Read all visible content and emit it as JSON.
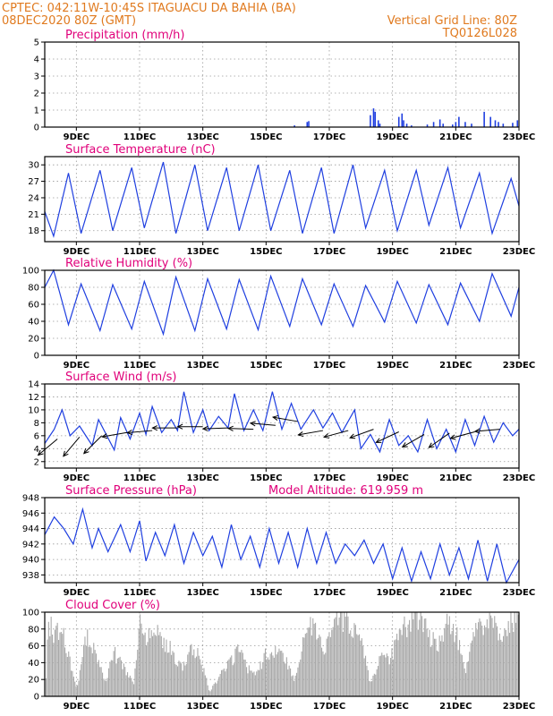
{
  "header": {
    "line1_left": "CPTEC:   042:11W-10:45S   ITAGUACU DA BAHIA (BA)",
    "line2_left": "08DEC2020 80Z (GMT)",
    "line1_right": "",
    "line2_right": "Vertical Grid Line: 80Z",
    "line3_right": "TQ0126L028"
  },
  "x_ticks": [
    "9DEC",
    "11DEC",
    "13DEC",
    "15DEC",
    "17DEC",
    "19DEC",
    "21DEC",
    "23DEC"
  ],
  "colors": {
    "series": "#1f3fe0",
    "cloud": "#a9a9a9",
    "title": "#e0007a",
    "header": "#e07a1f"
  },
  "chart_data": [
    {
      "type": "bar",
      "title": "Precipitation (mm/h)",
      "ylim": [
        0,
        5
      ],
      "yticks": [
        0,
        1,
        2,
        3,
        4,
        5
      ],
      "x": [
        15.9,
        16.3,
        16.35,
        18.3,
        18.4,
        18.45,
        18.55,
        18.6,
        19.2,
        19.3,
        19.35,
        19.45,
        19.6,
        20.1,
        20.3,
        20.5,
        20.6,
        20.9,
        21.0,
        21.1,
        21.3,
        21.5,
        21.9,
        22.1,
        22.25,
        22.35,
        22.5,
        22.8,
        22.95
      ],
      "values": [
        0.1,
        0.3,
        0.35,
        0.7,
        1.1,
        0.9,
        0.4,
        0.2,
        0.6,
        0.8,
        0.4,
        0.2,
        0.1,
        0.15,
        0.3,
        0.45,
        0.2,
        0.15,
        0.3,
        0.6,
        0.3,
        0.2,
        0.9,
        0.6,
        0.4,
        0.3,
        0.2,
        0.25,
        0.4
      ]
    },
    {
      "type": "line",
      "title": "Surface Temperature (nC)",
      "ylim": [
        16,
        31.5
      ],
      "yticks": [
        18,
        21,
        24,
        27,
        30
      ],
      "x": [
        8.0,
        8.28,
        8.75,
        9.15,
        9.75,
        10.15,
        10.75,
        11.15,
        11.75,
        12.15,
        12.75,
        13.15,
        13.75,
        14.15,
        14.75,
        15.15,
        15.75,
        16.15,
        16.75,
        17.15,
        17.75,
        18.15,
        18.75,
        19.15,
        19.75,
        20.15,
        20.75,
        21.15,
        21.75,
        22.15,
        22.75,
        23.0
      ],
      "values": [
        21.5,
        17.0,
        28.5,
        17.5,
        29.0,
        18.0,
        29.5,
        18.5,
        30.5,
        17.5,
        30.0,
        18.0,
        29.5,
        18.0,
        30.0,
        18.0,
        29.0,
        17.5,
        29.5,
        17.5,
        30.0,
        18.5,
        29.0,
        18.0,
        29.0,
        19.0,
        29.5,
        18.5,
        28.5,
        17.5,
        27.5,
        22.5
      ]
    },
    {
      "type": "line",
      "title": "Relative Humidity (%)",
      "ylim": [
        0,
        100
      ],
      "yticks": [
        0,
        20,
        40,
        60,
        80,
        100
      ],
      "x": [
        8.0,
        8.28,
        8.75,
        9.15,
        9.75,
        10.15,
        10.75,
        11.15,
        11.75,
        12.15,
        12.75,
        13.15,
        13.75,
        14.15,
        14.75,
        15.15,
        15.75,
        16.15,
        16.75,
        17.15,
        17.75,
        18.15,
        18.75,
        19.15,
        19.75,
        20.15,
        20.75,
        21.15,
        21.75,
        22.15,
        22.75,
        23.0
      ],
      "values": [
        80,
        100,
        36,
        84,
        29,
        83,
        31,
        87,
        25,
        92,
        29,
        90,
        31,
        89,
        30,
        93,
        34,
        90,
        36,
        84,
        34,
        82,
        39,
        87,
        38,
        83,
        36,
        85,
        40,
        96,
        46,
        80
      ]
    },
    {
      "type": "line",
      "title": "Surface Wind (m/s)",
      "ylim": [
        1,
        14
      ],
      "yticks": [
        2,
        4,
        6,
        8,
        10,
        12,
        14
      ],
      "x": [
        8.0,
        8.3,
        8.55,
        8.8,
        9.1,
        9.5,
        9.7,
        10.2,
        10.4,
        10.7,
        11.0,
        11.2,
        11.4,
        11.7,
        12.0,
        12.2,
        12.4,
        12.7,
        13.0,
        13.2,
        13.5,
        13.8,
        14.0,
        14.3,
        14.6,
        14.9,
        15.2,
        15.5,
        15.8,
        16.1,
        16.5,
        16.8,
        17.1,
        17.4,
        17.8,
        18.0,
        18.3,
        18.6,
        18.9,
        19.2,
        19.5,
        19.8,
        20.1,
        20.4,
        20.7,
        21.0,
        21.3,
        21.6,
        21.9,
        22.2,
        22.5,
        22.8,
        23.0
      ],
      "values": [
        4.8,
        7.0,
        10.0,
        6.0,
        7.5,
        4.5,
        8.5,
        3.8,
        8.8,
        5.5,
        9.5,
        6.2,
        10.5,
        6.5,
        8.5,
        6.8,
        12.8,
        6.5,
        10.0,
        6.8,
        9.0,
        7.2,
        12.5,
        6.8,
        10.0,
        6.8,
        12.8,
        7.0,
        11.0,
        7.0,
        10.0,
        7.2,
        9.5,
        6.5,
        10.0,
        4.0,
        6.2,
        3.5,
        8.5,
        4.5,
        6.0,
        3.5,
        8.5,
        4.0,
        7.0,
        3.5,
        8.5,
        4.5,
        9.0,
        5.0,
        8.0,
        6.0,
        7.0
      ],
      "arrows": [
        {
          "x": 8.4,
          "y": 5.5,
          "dir_deg": 220
        },
        {
          "x": 9.1,
          "y": 5.8,
          "dir_deg": 230
        },
        {
          "x": 9.8,
          "y": 6.0,
          "dir_deg": 225
        },
        {
          "x": 10.6,
          "y": 6.5,
          "dir_deg": 190
        },
        {
          "x": 11.4,
          "y": 6.8,
          "dir_deg": 185
        },
        {
          "x": 12.2,
          "y": 7.2,
          "dir_deg": 180
        },
        {
          "x": 13.0,
          "y": 7.4,
          "dir_deg": 180
        },
        {
          "x": 13.8,
          "y": 7.2,
          "dir_deg": 182
        },
        {
          "x": 14.6,
          "y": 7.0,
          "dir_deg": 178
        },
        {
          "x": 15.3,
          "y": 7.6,
          "dir_deg": 175
        },
        {
          "x": 16.0,
          "y": 8.2,
          "dir_deg": 170
        },
        {
          "x": 16.8,
          "y": 6.8,
          "dir_deg": 190
        },
        {
          "x": 17.6,
          "y": 6.8,
          "dir_deg": 195
        },
        {
          "x": 18.4,
          "y": 7.0,
          "dir_deg": 200
        },
        {
          "x": 19.2,
          "y": 6.6,
          "dir_deg": 205
        },
        {
          "x": 20.0,
          "y": 6.2,
          "dir_deg": 210
        },
        {
          "x": 20.8,
          "y": 6.4,
          "dir_deg": 215
        },
        {
          "x": 21.6,
          "y": 6.6,
          "dir_deg": 195
        },
        {
          "x": 22.4,
          "y": 7.0,
          "dir_deg": 185
        }
      ]
    },
    {
      "type": "line",
      "title": "Surface Pressure (hPa)",
      "annotation": "Model Altitude: 619.959  m",
      "ylim": [
        937,
        948
      ],
      "yticks": [
        938,
        940,
        942,
        944,
        946,
        948
      ],
      "x": [
        8.0,
        8.3,
        8.6,
        8.9,
        9.2,
        9.5,
        9.7,
        10.0,
        10.4,
        10.7,
        11.0,
        11.2,
        11.5,
        11.8,
        12.1,
        12.4,
        12.7,
        13.0,
        13.3,
        13.6,
        13.9,
        14.2,
        14.5,
        14.8,
        15.1,
        15.4,
        15.7,
        16.0,
        16.3,
        16.6,
        16.9,
        17.2,
        17.5,
        17.8,
        18.1,
        18.4,
        18.7,
        19.0,
        19.3,
        19.6,
        19.9,
        20.2,
        20.5,
        20.8,
        21.1,
        21.4,
        21.7,
        22.0,
        22.3,
        22.6,
        23.0
      ],
      "values": [
        943.2,
        945.5,
        944.0,
        942.0,
        946.5,
        941.5,
        944.0,
        941.0,
        944.5,
        941.0,
        945.0,
        939.8,
        943.5,
        940.5,
        944.5,
        939.5,
        943.5,
        940.5,
        943.0,
        939.0,
        944.5,
        940.0,
        943.0,
        939.0,
        944.0,
        939.5,
        943.5,
        939.0,
        944.0,
        939.5,
        943.5,
        939.5,
        942.0,
        940.5,
        942.5,
        939.5,
        942.0,
        937.5,
        941.5,
        937.2,
        941.0,
        937.5,
        942.0,
        938.0,
        941.5,
        937.5,
        942.5,
        937.2,
        942.0,
        937.0,
        940.0
      ]
    },
    {
      "type": "area",
      "title": "Cloud Cover (%)",
      "ylim": [
        0,
        100
      ],
      "yticks": [
        0,
        20,
        40,
        60,
        80,
        100
      ],
      "x": [
        8.0,
        8.1,
        8.3,
        8.5,
        8.7,
        9.0,
        9.3,
        9.6,
        9.9,
        10.2,
        10.5,
        10.8,
        11.0,
        11.2,
        11.4,
        11.7,
        12.0,
        12.3,
        12.6,
        12.9,
        13.2,
        13.5,
        13.8,
        14.1,
        14.4,
        14.7,
        15.0,
        15.3,
        15.6,
        15.9,
        16.2,
        16.5,
        16.8,
        17.1,
        17.4,
        17.7,
        18.0,
        18.3,
        18.6,
        18.9,
        19.2,
        19.5,
        19.8,
        20.1,
        20.4,
        20.7,
        21.0,
        21.3,
        21.6,
        21.9,
        22.2,
        22.5,
        22.8,
        23.0
      ],
      "values": [
        0,
        95,
        80,
        90,
        60,
        10,
        80,
        55,
        20,
        55,
        35,
        15,
        90,
        65,
        95,
        75,
        60,
        35,
        60,
        50,
        5,
        25,
        40,
        60,
        35,
        30,
        55,
        60,
        50,
        20,
        85,
        90,
        60,
        95,
        98,
        85,
        70,
        15,
        50,
        45,
        80,
        95,
        98,
        85,
        60,
        90,
        80,
        30,
        85,
        98,
        90,
        80,
        95,
        98
      ]
    }
  ]
}
